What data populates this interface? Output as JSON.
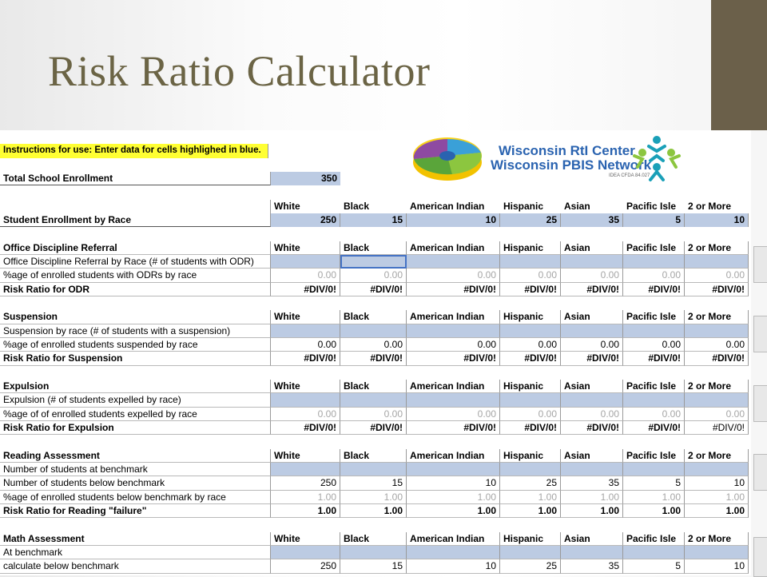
{
  "title": "Risk Ratio Calculator",
  "instructions": "Instructions for use:  Enter data for cells highlighed in blue.",
  "total_enrollment": {
    "label": "Total School Enrollment",
    "value": "350"
  },
  "logo": {
    "line1": "Wisconsin RtI Center",
    "line2": "Wisconsin PBIS Network",
    "tiny": "IDEA CFDA 84.027"
  },
  "races": [
    "White",
    "Black",
    "American Indian",
    "Hispanic",
    "Asian",
    "Pacific Isle",
    "2 or More"
  ],
  "enrollment_by_race": {
    "label": "Student Enrollment by Race",
    "values": [
      "250",
      "15",
      "10",
      "25",
      "35",
      "5",
      "10"
    ]
  },
  "odr": {
    "header": "Office Discipline Referral",
    "row1": "Office Discipline Referral by Race (# of students with ODR)",
    "row2": "%age of enrolled students with ODRs by race",
    "row2_values": [
      "0.00",
      "0.00",
      "0.00",
      "0.00",
      "0.00",
      "0.00",
      "0.00"
    ],
    "row3": "Risk Ratio for ODR",
    "row3_values": [
      "#DIV/0!",
      "#DIV/0!",
      "#DIV/0!",
      "#DIV/0!",
      "#DIV/0!",
      "#DIV/0!",
      "#DIV/0!"
    ]
  },
  "suspension": {
    "header": "Suspension",
    "row1": "Suspension by race (# of students with a suspension)",
    "row2": "%age of enrolled students suspended by race",
    "row2_values": [
      "0.00",
      "0.00",
      "0.00",
      "0.00",
      "0.00",
      "0.00",
      "0.00"
    ],
    "row3": "Risk Ratio for Suspension",
    "row3_values": [
      "#DIV/0!",
      "#DIV/0!",
      "#DIV/0!",
      "#DIV/0!",
      "#DIV/0!",
      "#DIV/0!",
      "#DIV/0!"
    ]
  },
  "expulsion": {
    "header": "Expulsion",
    "row1": "Expulsion (# of students expelled by race)",
    "row2": "%age of of enrolled students expelled by race",
    "row2_values": [
      "0.00",
      "0.00",
      "0.00",
      "0.00",
      "0.00",
      "0.00",
      "0.00"
    ],
    "row3": "Risk Ratio for Expulsion",
    "row3_values": [
      "#DIV/0!",
      "#DIV/0!",
      "#DIV/0!",
      "#DIV/0!",
      "#DIV/0!",
      "#DIV/0!",
      "#DIV/0!"
    ]
  },
  "reading": {
    "header": "Reading Assessment",
    "row1": "Number of students at benchmark",
    "row2": "Number of students below benchmark",
    "row2_values": [
      "250",
      "15",
      "10",
      "25",
      "35",
      "5",
      "10"
    ],
    "row3": "%age of enrolled students below benchmark by race",
    "row3_values": [
      "1.00",
      "1.00",
      "1.00",
      "1.00",
      "1.00",
      "1.00",
      "1.00"
    ],
    "row4": "Risk Ratio for Reading \"failure\"",
    "row4_values": [
      "1.00",
      "1.00",
      "1.00",
      "1.00",
      "1.00",
      "1.00",
      "1.00"
    ]
  },
  "math": {
    "header": "Math Assessment",
    "row1": "At benchmark",
    "row2": "calculate below benchmark",
    "row2_values": [
      "250",
      "15",
      "10",
      "25",
      "35",
      "5",
      "10"
    ]
  },
  "colors": {
    "title": "#6b6445",
    "accent": "#6b604a",
    "input_blue": "#bccbe3",
    "highlight": "#ffff33"
  }
}
